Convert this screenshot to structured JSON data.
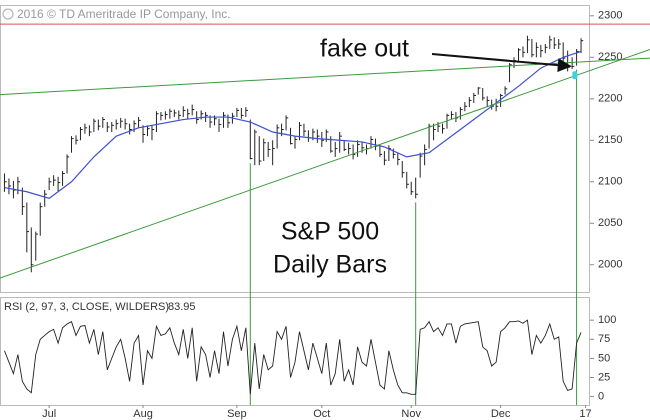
{
  "chart_data": {
    "type": "ohlc",
    "copyright": "2016 © TD Ameritrade IP Company, Inc.",
    "title_lines": [
      "S&P 500",
      "Daily Bars"
    ],
    "bar_color": "#222222",
    "xlim": [
      -1,
      131
    ],
    "xticks": [
      {
        "value": 10,
        "label": "Jul"
      },
      {
        "value": 31,
        "label": "Aug"
      },
      {
        "value": 52,
        "label": "Sep"
      },
      {
        "value": 71,
        "label": "Oct"
      },
      {
        "value": 91,
        "label": "Nov"
      },
      {
        "value": 111,
        "label": "Dec"
      },
      {
        "value": 130,
        "label": "17"
      }
    ],
    "ylim": [
      1966,
      2313
    ],
    "yticks": [
      2000,
      2050,
      2100,
      2150,
      2200,
      2250,
      2300
    ],
    "x": [
      0,
      1,
      2,
      3,
      4,
      5,
      6,
      7,
      8,
      9,
      10,
      11,
      12,
      13,
      14,
      15,
      16,
      17,
      18,
      19,
      20,
      21,
      22,
      23,
      24,
      25,
      26,
      27,
      28,
      29,
      30,
      31,
      32,
      33,
      34,
      35,
      36,
      37,
      38,
      39,
      40,
      41,
      42,
      43,
      44,
      45,
      46,
      47,
      48,
      49,
      50,
      51,
      52,
      53,
      54,
      55,
      56,
      57,
      58,
      59,
      60,
      61,
      62,
      63,
      64,
      65,
      66,
      67,
      68,
      69,
      70,
      71,
      72,
      73,
      74,
      75,
      76,
      77,
      78,
      79,
      80,
      81,
      82,
      83,
      84,
      85,
      86,
      87,
      88,
      89,
      90,
      91,
      92,
      93,
      94,
      95,
      96,
      97,
      98,
      99,
      100,
      101,
      102,
      103,
      104,
      105,
      106,
      107,
      108,
      109,
      110,
      111,
      112,
      113,
      114,
      115,
      116,
      117,
      118,
      119,
      120,
      121,
      122,
      123,
      124,
      125,
      126,
      127,
      128,
      129
    ],
    "high": [
      2110,
      2104,
      2101,
      2106,
      2093,
      2075,
      2045,
      2040,
      2075,
      2090,
      2105,
      2108,
      2106,
      2113,
      2133,
      2155,
      2156,
      2166,
      2170,
      2168,
      2176,
      2175,
      2178,
      2172,
      2172,
      2175,
      2177,
      2176,
      2170,
      2174,
      2178,
      2168,
      2168,
      2168,
      2185,
      2184,
      2185,
      2188,
      2187,
      2186,
      2191,
      2188,
      2193,
      2185,
      2186,
      2184,
      2180,
      2180,
      2176,
      2184,
      2181,
      2183,
      2189,
      2189,
      2190,
      2175,
      2163,
      2155,
      2152,
      2148,
      2150,
      2169,
      2170,
      2180,
      2165,
      2155,
      2172,
      2170,
      2162,
      2164,
      2163,
      2160,
      2163,
      2155,
      2148,
      2160,
      2150,
      2147,
      2145,
      2150,
      2148,
      2145,
      2155,
      2152,
      2145,
      2137,
      2144,
      2140,
      2135,
      2125,
      2112,
      2100,
      2105,
      2135,
      2145,
      2170,
      2170,
      2172,
      2170,
      2182,
      2185,
      2184,
      2190,
      2196,
      2202,
      2207,
      2214,
      2213,
      2203,
      2199,
      2200,
      2206,
      2215,
      2243,
      2250,
      2261,
      2263,
      2276,
      2272,
      2268,
      2265,
      2266,
      2276,
      2274,
      2272,
      2268,
      2258,
      2250,
      2260,
      2273
    ],
    "low": [
      2088,
      2085,
      2080,
      2085,
      2060,
      2015,
      1991,
      2005,
      2035,
      2070,
      2090,
      2095,
      2088,
      2095,
      2110,
      2135,
      2145,
      2150,
      2158,
      2155,
      2160,
      2162,
      2165,
      2160,
      2160,
      2163,
      2165,
      2163,
      2157,
      2160,
      2165,
      2147,
      2155,
      2150,
      2160,
      2174,
      2175,
      2176,
      2178,
      2175,
      2178,
      2176,
      2180,
      2170,
      2175,
      2172,
      2165,
      2168,
      2160,
      2165,
      2165,
      2170,
      2178,
      2176,
      2178,
      2127,
      2120,
      2120,
      2125,
      2130,
      2120,
      2140,
      2155,
      2162,
      2145,
      2140,
      2150,
      2155,
      2148,
      2150,
      2147,
      2142,
      2148,
      2135,
      2130,
      2135,
      2137,
      2133,
      2127,
      2130,
      2135,
      2133,
      2140,
      2138,
      2130,
      2120,
      2125,
      2128,
      2120,
      2105,
      2092,
      2084,
      2080,
      2105,
      2120,
      2140,
      2150,
      2160,
      2158,
      2164,
      2175,
      2172,
      2175,
      2185,
      2190,
      2195,
      2205,
      2198,
      2190,
      2187,
      2185,
      2190,
      2205,
      2220,
      2237,
      2245,
      2250,
      2255,
      2250,
      2250,
      2250,
      2255,
      2260,
      2260,
      2260,
      2245,
      2233,
      2236,
      2240,
      2255
    ],
    "close": [
      2100,
      2095,
      2090,
      2100,
      2070,
      2040,
      2000,
      2037,
      2070,
      2085,
      2100,
      2102,
      2099,
      2110,
      2130,
      2152,
      2150,
      2163,
      2165,
      2160,
      2173,
      2167,
      2175,
      2166,
      2168,
      2170,
      2173,
      2170,
      2163,
      2170,
      2174,
      2157,
      2164,
      2163,
      2182,
      2180,
      2181,
      2185,
      2183,
      2180,
      2186,
      2182,
      2187,
      2175,
      2182,
      2180,
      2172,
      2176,
      2169,
      2180,
      2171,
      2179,
      2186,
      2180,
      2186,
      2128,
      2160,
      2125,
      2147,
      2139,
      2140,
      2165,
      2163,
      2177,
      2146,
      2151,
      2168,
      2161,
      2153,
      2160,
      2155,
      2150,
      2160,
      2137,
      2140,
      2155,
      2139,
      2140,
      2133,
      2145,
      2141,
      2140,
      2151,
      2143,
      2133,
      2126,
      2140,
      2133,
      2127,
      2111,
      2097,
      2088,
      2085,
      2131,
      2139,
      2167,
      2163,
      2167,
      2164,
      2180,
      2181,
      2177,
      2187,
      2191,
      2198,
      2204,
      2213,
      2201,
      2198,
      2191,
      2191,
      2204,
      2212,
      2241,
      2246,
      2259,
      2256,
      2271,
      2253,
      2262,
      2258,
      2262,
      2271,
      2265,
      2266,
      2249,
      2238,
      2239,
      2257,
      2270
    ],
    "moving_average": {
      "color": "#3f4fd0",
      "x": [
        0,
        5,
        10,
        15,
        20,
        25,
        30,
        35,
        40,
        45,
        50,
        55,
        60,
        65,
        70,
        75,
        80,
        85,
        90,
        95,
        100,
        105,
        110,
        115,
        120,
        125,
        129
      ],
      "values": [
        2093,
        2088,
        2080,
        2100,
        2130,
        2155,
        2165,
        2170,
        2175,
        2178,
        2178,
        2172,
        2160,
        2155,
        2152,
        2150,
        2148,
        2142,
        2130,
        2135,
        2155,
        2175,
        2195,
        2215,
        2237,
        2250,
        2257
      ]
    },
    "resistance": {
      "value": 2290,
      "color": "#d9534f"
    },
    "trendlines": {
      "color": "#3c9a3c",
      "lines": [
        [
          [
            -1,
            2205
          ],
          [
            131,
            2245
          ]
        ],
        [
          [
            -1,
            1984
          ],
          [
            131,
            2234
          ]
        ]
      ]
    },
    "vlines": [
      55,
      92,
      128
    ],
    "annotations": [
      {
        "text": "fake out",
        "point": [
          127.5,
          2238
        ],
        "marker_color": "#3fd0e0"
      }
    ],
    "indicator": {
      "type": "line",
      "label": "RSI (2, 97, 3, CLOSE, WILDERS)",
      "color": "#222222",
      "ylim": [
        -11,
        129
      ],
      "yticks": [
        0,
        25,
        50,
        75,
        100
      ],
      "values": [
        60,
        45,
        30,
        55,
        20,
        10,
        5,
        55,
        75,
        80,
        85,
        88,
        70,
        90,
        95,
        98,
        80,
        92,
        93,
        70,
        88,
        55,
        85,
        35,
        50,
        65,
        75,
        50,
        20,
        70,
        80,
        15,
        60,
        50,
        92,
        80,
        82,
        90,
        70,
        55,
        88,
        50,
        90,
        20,
        65,
        55,
        25,
        60,
        30,
        85,
        40,
        75,
        92,
        60,
        90,
        3,
        70,
        10,
        55,
        35,
        40,
        85,
        75,
        92,
        25,
        45,
        85,
        60,
        35,
        70,
        50,
        30,
        70,
        15,
        30,
        75,
        20,
        35,
        15,
        65,
        45,
        40,
        75,
        45,
        15,
        10,
        60,
        35,
        15,
        5,
        5,
        3,
        3,
        88,
        90,
        98,
        85,
        90,
        80,
        95,
        95,
        70,
        92,
        95,
        96,
        97,
        98,
        65,
        60,
        40,
        45,
        85,
        90,
        98,
        98,
        99,
        96,
        100,
        55,
        80,
        70,
        80,
        95,
        75,
        78,
        20,
        8,
        10,
        70,
        83.95
      ]
    }
  }
}
